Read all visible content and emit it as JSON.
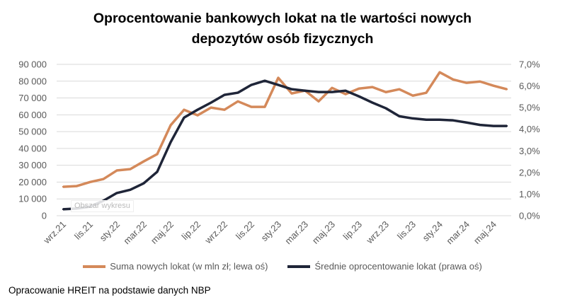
{
  "chart_data": {
    "type": "line",
    "title_line1": "Oprocentowanie bankowych lokat na tle wartości nowych",
    "title_line2": "depozytów osób fizycznych",
    "x": [
      "wrz.21",
      "paź.21",
      "lis.21",
      "gru.21",
      "sty.22",
      "lut.22",
      "mar.22",
      "kwi.22",
      "maj.22",
      "cze.22",
      "lip.22",
      "sie.22",
      "wrz.22",
      "paź.22",
      "lis.22",
      "gru.22",
      "sty.23",
      "lut.23",
      "mar.23",
      "kwi.23",
      "maj.23",
      "cze.23",
      "lip.23",
      "sie.23",
      "wrz.23",
      "paź.23",
      "lis.23",
      "gru.23",
      "sty.24",
      "lut.24",
      "mar.24",
      "kwi.24",
      "maj.24",
      "cze.24"
    ],
    "x_tick_labels": [
      "wrz.21",
      "lis.21",
      "sty.22",
      "mar.22",
      "maj.22",
      "lip.22",
      "wrz.22",
      "lis.22",
      "sty.23",
      "mar.23",
      "maj.23",
      "lip.23",
      "wrz.23",
      "lis.23",
      "sty.24",
      "mar.24",
      "maj.24"
    ],
    "y_left": {
      "ylim": [
        0,
        90000
      ],
      "ticks": [
        "0",
        "10 000",
        "20 000",
        "30 000",
        "40 000",
        "50 000",
        "60 000",
        "70 000",
        "80 000",
        "90 000"
      ]
    },
    "y_right": {
      "ylim": [
        0,
        7
      ],
      "ticks": [
        "0,0%",
        "1,0%",
        "2,0%",
        "3,0%",
        "4,0%",
        "5,0%",
        "6,0%",
        "7,0%"
      ]
    },
    "grid": true,
    "legend_position": "bottom",
    "series": [
      {
        "name": "Suma nowych lokat (w mln zł; lewa oś)",
        "axis": "left",
        "color": "#D4895A",
        "values": [
          17200,
          17600,
          20000,
          21800,
          26900,
          27700,
          32300,
          36600,
          53800,
          63000,
          59700,
          64300,
          63000,
          68000,
          64700,
          64700,
          82000,
          72700,
          74400,
          68000,
          76000,
          72300,
          75600,
          76500,
          73500,
          75200,
          71400,
          73100,
          85300,
          81000,
          79000,
          79800,
          77300,
          75200
        ]
      },
      {
        "name": "Średnie oprocentowanie lokat (prawa oś)",
        "axis": "right",
        "color": "#1F2538",
        "values": [
          0.3,
          0.33,
          0.42,
          0.69,
          1.05,
          1.2,
          1.5,
          2.03,
          3.4,
          4.54,
          4.9,
          5.23,
          5.59,
          5.69,
          6.05,
          6.24,
          6.05,
          5.85,
          5.78,
          5.72,
          5.72,
          5.78,
          5.52,
          5.23,
          4.97,
          4.6,
          4.5,
          4.44,
          4.44,
          4.41,
          4.31,
          4.2,
          4.15,
          4.15
        ]
      }
    ],
    "tooltip": "Obszar wykresu"
  },
  "source": "Opracowanie HREIT na podstawie danych NBP"
}
